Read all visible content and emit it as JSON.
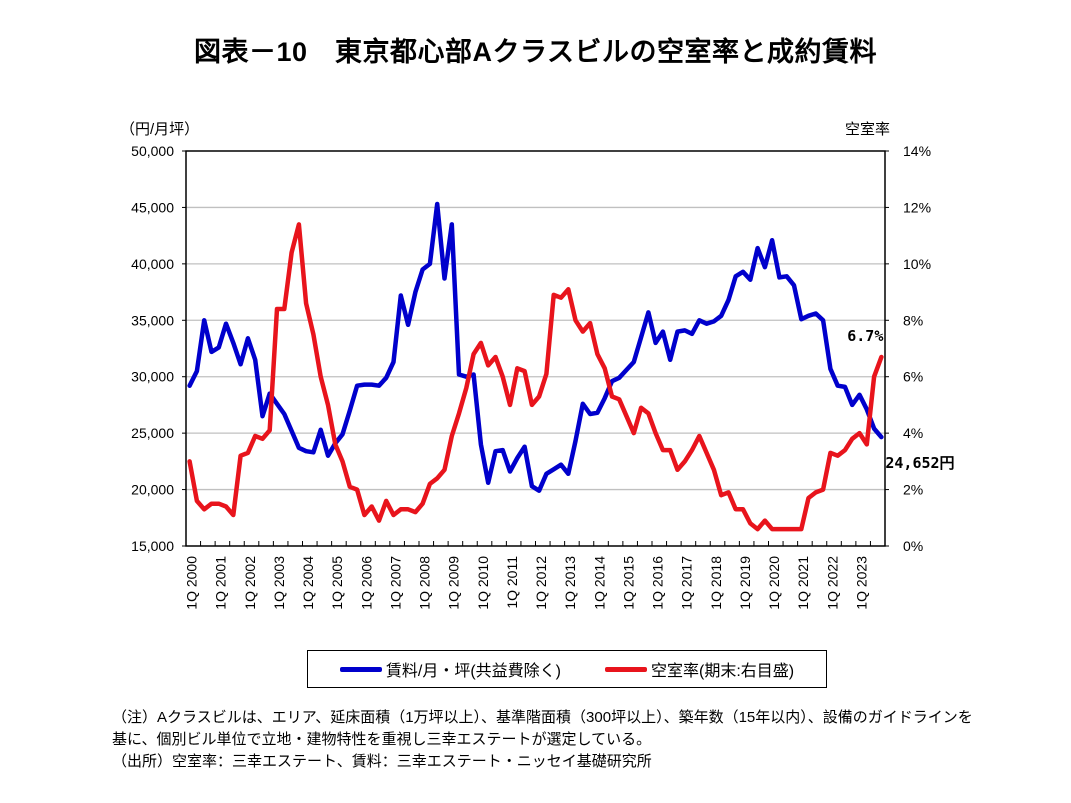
{
  "title": "図表－10　東京都心部Aクラスビルの空室率と成約賃料",
  "left_axis_unit": "（円/月坪）",
  "right_axis_unit": "空室率",
  "legend": {
    "rent_label": "賃料/月・坪(共益費除く)",
    "vacancy_label": "空室率(期末:右目盛)"
  },
  "notes": [
    "（注）Aクラスビルは、エリア、延床面積（1万坪以上）、基準階面積（300坪以上）、築年数（15年以内）、設備のガイドラインを",
    "基に、個別ビル単位で立地・建物特性を重視し三幸エステートが選定している。",
    "（出所）空室率：三幸エステート、賃料：三幸エステート・ニッセイ基礎研究所"
  ],
  "chart_data": {
    "type": "line",
    "title": "図表－10　東京都心部Aクラスビルの空室率と成約賃料",
    "xlabel": "",
    "ylabel": "（円/月坪）",
    "y2label": "空室率",
    "ylim": [
      15000,
      50000
    ],
    "y2lim": [
      0,
      14
    ],
    "yticks": [
      "15,000",
      "20,000",
      "25,000",
      "30,000",
      "35,000",
      "40,000",
      "45,000",
      "50,000"
    ],
    "y2ticks": [
      "0%",
      "2%",
      "4%",
      "6%",
      "8%",
      "10%",
      "12%",
      "14%"
    ],
    "grid": true,
    "legend_position": "bottom",
    "x_tick_labels": [
      "1Q 2000",
      "1Q 2001",
      "1Q 2002",
      "1Q 2003",
      "1Q 2004",
      "1Q 2005",
      "1Q 2006",
      "1Q 2007",
      "1Q 2008",
      "1Q 2009",
      "1Q 2010",
      "1Q 2011",
      "1Q 2012",
      "1Q 2013",
      "1Q 2014",
      "1Q 2015",
      "1Q 2016",
      "1Q 2017",
      "1Q 2018",
      "1Q 2019",
      "1Q 2020",
      "1Q 2021",
      "1Q 2022",
      "1Q 2023"
    ],
    "periods_per_year": 4,
    "series": [
      {
        "name": "賃料/月・坪(共益費除く)",
        "axis": "left",
        "color": "#0000cc",
        "values": [
          29200,
          30500,
          35000,
          32200,
          32600,
          34700,
          33000,
          31100,
          33400,
          31500,
          26500,
          28500,
          27600,
          26700,
          25200,
          23700,
          23400,
          23300,
          25300,
          23000,
          24100,
          24900,
          27000,
          29200,
          29300,
          29300,
          29200,
          29900,
          31300,
          37200,
          34600,
          37500,
          39500,
          40000,
          45300,
          38700,
          43500,
          30200,
          30000,
          30200,
          24000,
          20600,
          23400,
          23500,
          21600,
          22800,
          23800,
          20300,
          19900,
          21400,
          21800,
          22200,
          21400,
          24300,
          27600,
          26700,
          26800,
          28100,
          29600,
          29900,
          30600,
          31300,
          33500,
          35700,
          33000,
          34000,
          31500,
          34000,
          34100,
          33800,
          35000,
          34700,
          34900,
          35400,
          36800,
          38900,
          39300,
          38600,
          41400,
          39700,
          42100,
          38800,
          38900,
          38100,
          35100,
          35400,
          35600,
          35000,
          30700,
          29200,
          29100,
          27500,
          28400,
          27100,
          25400,
          24652
        ],
        "end_label": "24,652円"
      },
      {
        "name": "空室率(期末:右目盛)",
        "axis": "right",
        "color": "#e8141c",
        "values": [
          3.0,
          1.6,
          1.3,
          1.5,
          1.5,
          1.4,
          1.1,
          3.2,
          3.3,
          3.9,
          3.8,
          4.1,
          8.4,
          8.4,
          10.4,
          11.4,
          8.6,
          7.5,
          6.0,
          5.0,
          3.6,
          3.0,
          2.1,
          2.0,
          1.1,
          1.4,
          0.9,
          1.6,
          1.1,
          1.3,
          1.3,
          1.2,
          1.5,
          2.2,
          2.4,
          2.7,
          3.9,
          4.7,
          5.6,
          6.8,
          7.2,
          6.4,
          6.7,
          6.0,
          5.0,
          6.3,
          6.2,
          5.0,
          5.3,
          6.1,
          8.9,
          8.8,
          9.1,
          8.0,
          7.6,
          7.9,
          6.8,
          6.3,
          5.3,
          5.2,
          4.6,
          4.0,
          4.9,
          4.7,
          4.0,
          3.4,
          3.4,
          2.7,
          3.0,
          3.4,
          3.9,
          3.3,
          2.7,
          1.8,
          1.9,
          1.3,
          1.3,
          0.8,
          0.6,
          0.9,
          0.6,
          0.6,
          0.6,
          0.6,
          0.6,
          1.7,
          1.9,
          2.0,
          3.3,
          3.2,
          3.4,
          3.8,
          4.0,
          3.6,
          6.0,
          6.7
        ],
        "end_label": "6.7%"
      }
    ]
  }
}
